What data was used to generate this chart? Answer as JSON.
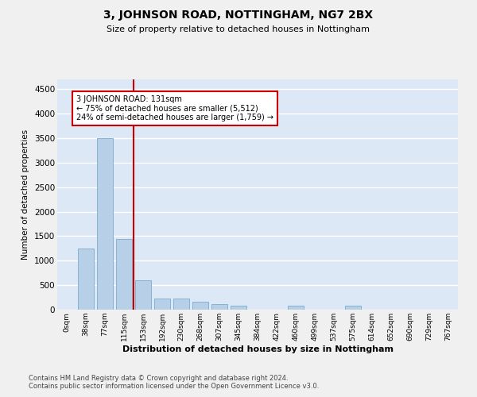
{
  "title": "3, JOHNSON ROAD, NOTTINGHAM, NG7 2BX",
  "subtitle": "Size of property relative to detached houses in Nottingham",
  "xlabel": "Distribution of detached houses by size in Nottingham",
  "ylabel": "Number of detached properties",
  "categories": [
    "0sqm",
    "38sqm",
    "77sqm",
    "115sqm",
    "153sqm",
    "192sqm",
    "230sqm",
    "268sqm",
    "307sqm",
    "345sqm",
    "384sqm",
    "422sqm",
    "460sqm",
    "499sqm",
    "537sqm",
    "575sqm",
    "614sqm",
    "652sqm",
    "690sqm",
    "729sqm",
    "767sqm"
  ],
  "values": [
    0,
    1250,
    3500,
    1450,
    600,
    230,
    230,
    170,
    120,
    75,
    0,
    0,
    75,
    0,
    0,
    75,
    0,
    0,
    0,
    0,
    0
  ],
  "bar_color": "#b8cfe8",
  "bar_edge_color": "#7aaad0",
  "vline_x": 3.5,
  "vline_color": "#cc0000",
  "annotation_text": "3 JOHNSON ROAD: 131sqm\n← 75% of detached houses are smaller (5,512)\n24% of semi-detached houses are larger (1,759) →",
  "annotation_box_color": "#ffffff",
  "annotation_box_edge": "#cc0000",
  "ylim": [
    0,
    4700
  ],
  "yticks": [
    0,
    500,
    1000,
    1500,
    2000,
    2500,
    3000,
    3500,
    4000,
    4500
  ],
  "bg_color": "#dce8f5",
  "grid_color": "#ffffff",
  "fig_bg_color": "#f0f0f0",
  "footer1": "Contains HM Land Registry data © Crown copyright and database right 2024.",
  "footer2": "Contains public sector information licensed under the Open Government Licence v3.0."
}
